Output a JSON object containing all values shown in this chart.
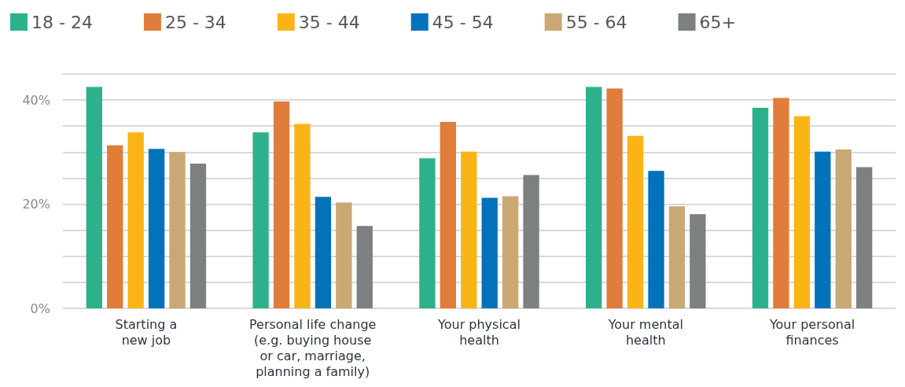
{
  "chart_data": {
    "type": "bar",
    "categories": [
      "Starting a\nnew job",
      "Personal life change\n(e.g. buying house\nor car, marriage,\nplanning a family)",
      "Your physical\nhealth",
      "Your mental\nhealth",
      "Your personal\nfinances"
    ],
    "series": [
      {
        "name": "18 - 24",
        "color": "#2db08c",
        "values": [
          42.5,
          33.8,
          28.8,
          42.5,
          38.5
        ]
      },
      {
        "name": "25 - 34",
        "color": "#e07d3a",
        "values": [
          31.3,
          39.7,
          35.8,
          42.2,
          40.4
        ]
      },
      {
        "name": "35 - 44",
        "color": "#fbb416",
        "values": [
          33.8,
          35.4,
          30.1,
          33.1,
          36.9
        ]
      },
      {
        "name": "45 - 54",
        "color": "#0272bb",
        "values": [
          30.6,
          21.4,
          21.2,
          26.4,
          30.1
        ]
      },
      {
        "name": "55 - 64",
        "color": "#caa874",
        "values": [
          30.0,
          20.3,
          21.5,
          19.6,
          30.5
        ]
      },
      {
        "name": "65+",
        "color": "#7c807f",
        "values": [
          27.8,
          15.8,
          25.6,
          18.1,
          27.1
        ]
      }
    ],
    "ylim": [
      0,
      45
    ],
    "yticks": [
      {
        "value": 0,
        "label": "0%"
      },
      {
        "value": 5,
        "label": null
      },
      {
        "value": 10,
        "label": null
      },
      {
        "value": 15,
        "label": null
      },
      {
        "value": 20,
        "label": "20%"
      },
      {
        "value": 25,
        "label": null
      },
      {
        "value": 30,
        "label": null
      },
      {
        "value": 35,
        "label": null
      },
      {
        "value": 40,
        "label": "40%"
      },
      {
        "value": 45,
        "label": null
      }
    ],
    "grid": "y",
    "legend": "top left"
  }
}
